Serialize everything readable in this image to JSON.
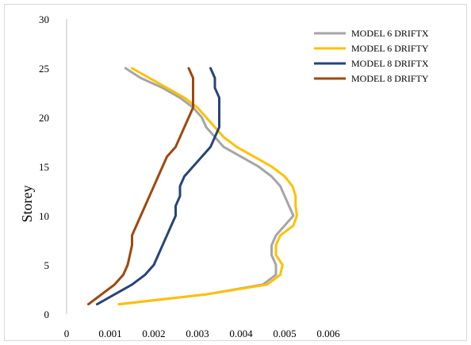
{
  "chart_data": {
    "type": "line",
    "title": "",
    "xlabel": "",
    "ylabel": "Storey",
    "xlim": [
      0,
      0.006
    ],
    "ylim": [
      0,
      30
    ],
    "x_ticks": [
      "0",
      "0.001",
      "0.002",
      "0.003",
      "0.004",
      "0.005",
      "0.006"
    ],
    "y_ticks": [
      "0",
      "5",
      "10",
      "15",
      "20",
      "25",
      "30"
    ],
    "grid": false,
    "legend_position": "top-right",
    "series": [
      {
        "name": "MODEL 6 DRIFTX",
        "color": "#a5a5a5",
        "points": [
          [
            0.0012,
            1
          ],
          [
            0.0032,
            2
          ],
          [
            0.0045,
            3
          ],
          [
            0.0048,
            4
          ],
          [
            0.0048,
            5
          ],
          [
            0.0047,
            6
          ],
          [
            0.0047,
            7
          ],
          [
            0.0048,
            8
          ],
          [
            0.005,
            9
          ],
          [
            0.0052,
            10
          ],
          [
            0.0051,
            11
          ],
          [
            0.005,
            12
          ],
          [
            0.0049,
            13
          ],
          [
            0.0047,
            14
          ],
          [
            0.0044,
            15
          ],
          [
            0.004,
            16
          ],
          [
            0.0036,
            17
          ],
          [
            0.0034,
            18
          ],
          [
            0.0032,
            19
          ],
          [
            0.0031,
            20
          ],
          [
            0.0029,
            21
          ],
          [
            0.0026,
            22
          ],
          [
            0.0022,
            23
          ],
          [
            0.0017,
            24
          ],
          [
            0.00135,
            25
          ]
        ]
      },
      {
        "name": "MODEL 6 DRIFTY",
        "color": "#ffc000",
        "points": [
          [
            0.0012,
            1
          ],
          [
            0.0032,
            2
          ],
          [
            0.0046,
            3
          ],
          [
            0.0049,
            4
          ],
          [
            0.00495,
            5
          ],
          [
            0.0048,
            6
          ],
          [
            0.0048,
            7
          ],
          [
            0.0049,
            8
          ],
          [
            0.0052,
            9
          ],
          [
            0.00528,
            10
          ],
          [
            0.00525,
            11
          ],
          [
            0.00525,
            12
          ],
          [
            0.00518,
            13
          ],
          [
            0.005,
            14
          ],
          [
            0.0047,
            15
          ],
          [
            0.0043,
            16
          ],
          [
            0.0039,
            17
          ],
          [
            0.0036,
            18
          ],
          [
            0.0034,
            19
          ],
          [
            0.0032,
            20
          ],
          [
            0.003,
            21
          ],
          [
            0.0027,
            22
          ],
          [
            0.0023,
            23
          ],
          [
            0.0019,
            24
          ],
          [
            0.0015,
            25
          ]
        ]
      },
      {
        "name": "MODEL 8 DRIFTX",
        "color": "#264478",
        "points": [
          [
            0.0007,
            1
          ],
          [
            0.0011,
            2
          ],
          [
            0.0015,
            3
          ],
          [
            0.0018,
            4
          ],
          [
            0.002,
            5
          ],
          [
            0.0021,
            6
          ],
          [
            0.0022,
            7
          ],
          [
            0.0023,
            8
          ],
          [
            0.0024,
            9
          ],
          [
            0.0025,
            10
          ],
          [
            0.0025,
            11
          ],
          [
            0.0026,
            12
          ],
          [
            0.0026,
            13
          ],
          [
            0.0027,
            14
          ],
          [
            0.0029,
            15
          ],
          [
            0.0031,
            16
          ],
          [
            0.0033,
            17
          ],
          [
            0.0034,
            18
          ],
          [
            0.0035,
            19
          ],
          [
            0.0035,
            20
          ],
          [
            0.0035,
            21
          ],
          [
            0.0035,
            22
          ],
          [
            0.0034,
            23
          ],
          [
            0.0034,
            24
          ],
          [
            0.0033,
            25
          ]
        ]
      },
      {
        "name": "MODEL 8 DRIFTY",
        "color": "#9e480e",
        "points": [
          [
            0.0005,
            1
          ],
          [
            0.0008,
            2
          ],
          [
            0.0011,
            3
          ],
          [
            0.0013,
            4
          ],
          [
            0.0014,
            5
          ],
          [
            0.00145,
            6
          ],
          [
            0.0015,
            7
          ],
          [
            0.0015,
            8
          ],
          [
            0.0016,
            9
          ],
          [
            0.0017,
            10
          ],
          [
            0.0018,
            11
          ],
          [
            0.0019,
            12
          ],
          [
            0.002,
            13
          ],
          [
            0.0021,
            14
          ],
          [
            0.0022,
            15
          ],
          [
            0.0023,
            16
          ],
          [
            0.0025,
            17
          ],
          [
            0.0026,
            18
          ],
          [
            0.0027,
            19
          ],
          [
            0.0028,
            20
          ],
          [
            0.0029,
            21
          ],
          [
            0.0029,
            22
          ],
          [
            0.0029,
            23
          ],
          [
            0.0029,
            24
          ],
          [
            0.0028,
            25
          ]
        ]
      }
    ]
  }
}
